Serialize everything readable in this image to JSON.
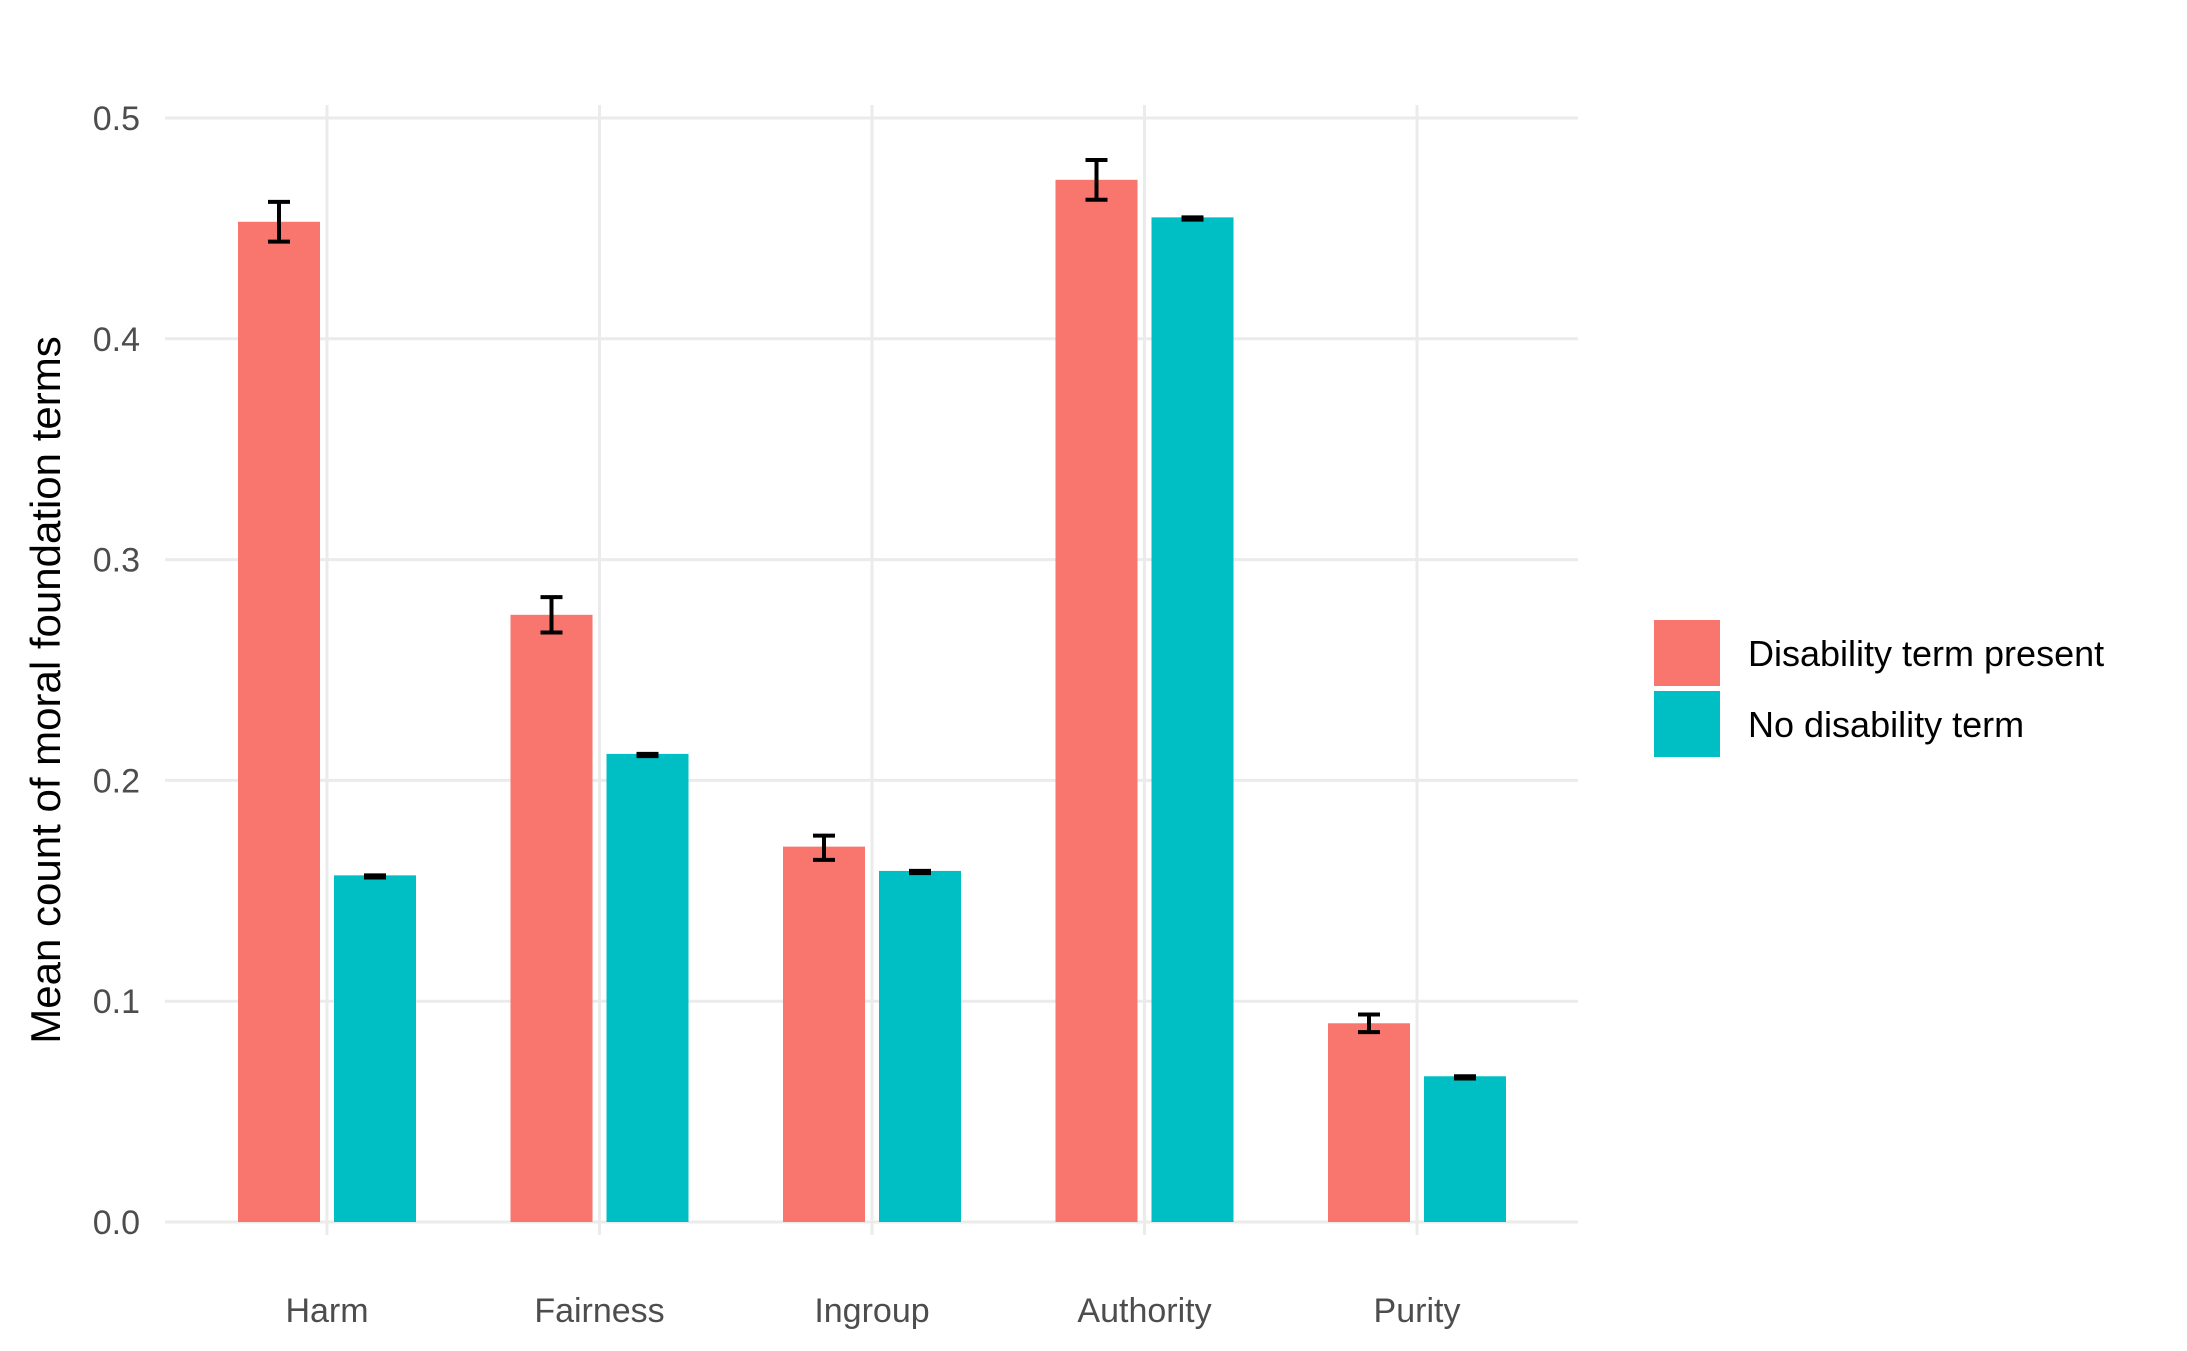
{
  "chart_data": {
    "type": "bar",
    "categories": [
      "Harm",
      "Fairness",
      "Ingroup",
      "Authority",
      "Purity"
    ],
    "series": [
      {
        "name": "Disability term present",
        "color": "#F8766D",
        "values": [
          0.453,
          0.275,
          0.17,
          0.472,
          0.09
        ],
        "err_low": [
          0.444,
          0.267,
          0.164,
          0.463,
          0.086
        ],
        "err_high": [
          0.462,
          0.283,
          0.175,
          0.481,
          0.094
        ]
      },
      {
        "name": "No disability term",
        "color": "#00BFC4",
        "values": [
          0.157,
          0.212,
          0.159,
          0.455,
          0.066
        ],
        "err_low": [
          0.156,
          0.211,
          0.158,
          0.454,
          0.065
        ],
        "err_high": [
          0.157,
          0.212,
          0.159,
          0.455,
          0.066
        ]
      }
    ],
    "xlabel": "",
    "ylabel": "Mean count of moral foundation terms",
    "ylim": [
      0.0,
      0.5
    ],
    "yticks": [
      "0.0",
      "0.1",
      "0.2",
      "0.3",
      "0.4",
      "0.5"
    ],
    "grid": true,
    "legend_position": "right"
  }
}
